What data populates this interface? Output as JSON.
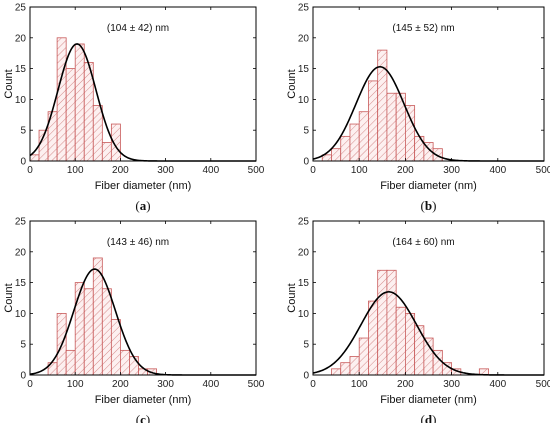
{
  "chart_data": [
    {
      "type": "bar",
      "panel_label_open": "(",
      "panel_label_letter": "a",
      "panel_label_close": ")",
      "annotation": "(104 ± 42) nm",
      "xlabel": "Fiber diameter (nm)",
      "ylabel": "Count",
      "xlim": [
        0,
        500
      ],
      "ylim": [
        0,
        25
      ],
      "xticks": [
        "0",
        "100",
        "200",
        "300",
        "400",
        "500"
      ],
      "yticks": [
        "0",
        "5",
        "10",
        "15",
        "20",
        "25"
      ],
      "bin_edges": [
        0,
        20,
        40,
        60,
        80,
        100,
        120,
        140,
        160,
        180,
        200
      ],
      "values": [
        1,
        5,
        8,
        20,
        15,
        19,
        16,
        9,
        3,
        6
      ],
      "fit": {
        "mean": 104,
        "sd": 42,
        "peak": 19
      }
    },
    {
      "type": "bar",
      "panel_label_open": "(",
      "panel_label_letter": "b",
      "panel_label_close": ")",
      "annotation": "(145 ± 52) nm",
      "xlabel": "Fiber diameter (nm)",
      "ylabel": "Count",
      "xlim": [
        0,
        500
      ],
      "ylim": [
        0,
        25
      ],
      "xticks": [
        "0",
        "100",
        "200",
        "300",
        "400",
        "500"
      ],
      "yticks": [
        "0",
        "5",
        "10",
        "15",
        "20",
        "25"
      ],
      "bin_edges": [
        20,
        40,
        60,
        80,
        100,
        120,
        140,
        160,
        180,
        200,
        220,
        240,
        260,
        280
      ],
      "values": [
        1,
        2,
        4,
        6,
        8,
        13,
        18,
        11,
        11,
        9,
        4,
        3,
        2
      ],
      "fit": {
        "mean": 145,
        "sd": 52,
        "peak": 15.3
      }
    },
    {
      "type": "bar",
      "panel_label_open": "(",
      "panel_label_letter": "c",
      "panel_label_close": ")",
      "annotation": "(143 ± 46) nm",
      "xlabel": "Fiber diameter (nm)",
      "ylabel": "Count",
      "xlim": [
        0,
        500
      ],
      "ylim": [
        0,
        25
      ],
      "xticks": [
        "0",
        "100",
        "200",
        "300",
        "400",
        "500"
      ],
      "yticks": [
        "0",
        "5",
        "10",
        "15",
        "20",
        "25"
      ],
      "bin_edges": [
        40,
        60,
        80,
        100,
        120,
        140,
        160,
        180,
        200,
        220,
        240,
        260,
        280
      ],
      "values": [
        2,
        10,
        4,
        15,
        14,
        19,
        14,
        9,
        4,
        3,
        1,
        1
      ],
      "fit": {
        "mean": 143,
        "sd": 46,
        "peak": 17.2
      }
    },
    {
      "type": "bar",
      "panel_label_open": "(",
      "panel_label_letter": "d",
      "panel_label_close": ")",
      "annotation": "(164 ± 60) nm",
      "xlabel": "Fiber diameter (nm)",
      "ylabel": "Count",
      "xlim": [
        0,
        500
      ],
      "ylim": [
        0,
        25
      ],
      "xticks": [
        "0",
        "100",
        "200",
        "300",
        "400",
        "500"
      ],
      "yticks": [
        "0",
        "5",
        "10",
        "15",
        "20",
        "25"
      ],
      "bin_edges": [
        40,
        60,
        80,
        100,
        120,
        140,
        160,
        180,
        200,
        220,
        240,
        260,
        280,
        300,
        320,
        340,
        360,
        380
      ],
      "values": [
        1,
        2,
        3,
        6,
        12,
        17,
        17,
        11,
        10,
        8,
        6,
        4,
        2,
        1,
        0,
        0,
        1
      ],
      "fit": {
        "mean": 164,
        "sd": 60,
        "peak": 13.5
      }
    }
  ]
}
